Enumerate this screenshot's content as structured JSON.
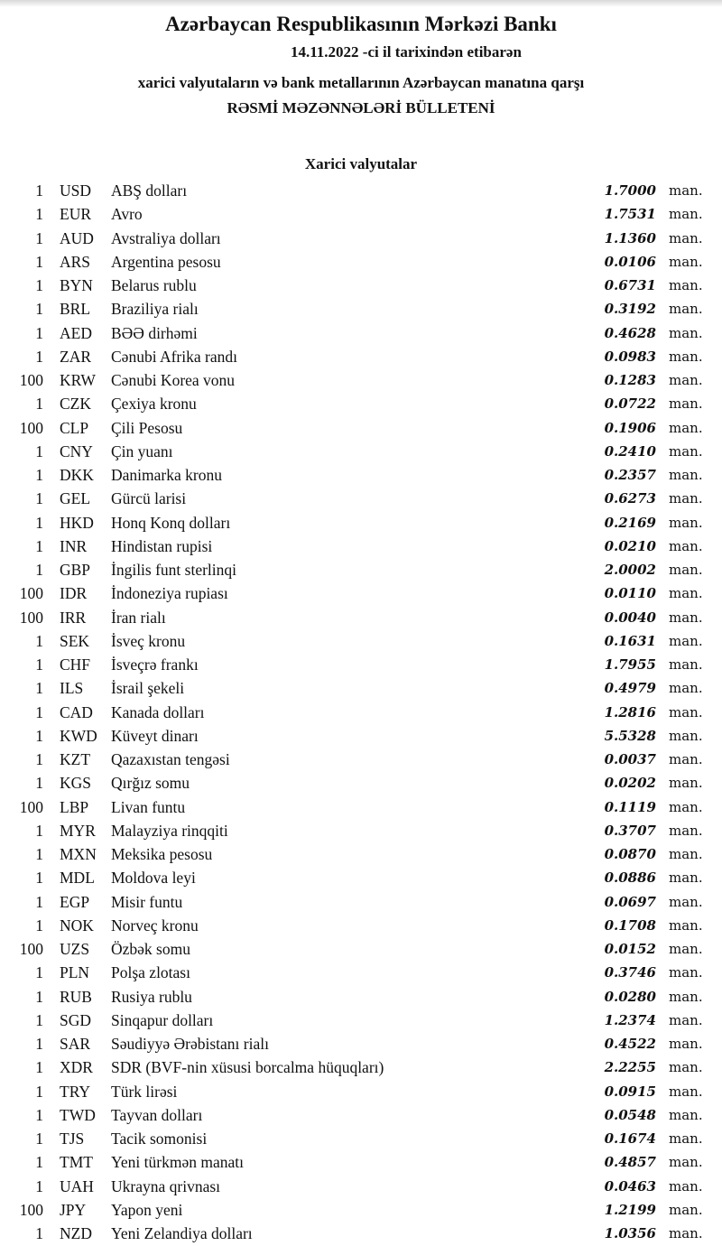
{
  "header": {
    "title": "Azərbaycan Respublikasının Mərkəzi Bankı",
    "date_line": "14.11.2022 -ci il tarixindən etibarən",
    "subtitle": "xarici valyutaların və bank metallarının Azərbaycan manatına qarşı",
    "bulletin": "RƏSMİ MƏZƏNNƏLƏRİ BÜLLETENİ",
    "section": "Xarici valyutalar"
  },
  "unit": "man.",
  "rates": [
    {
      "nominal": "1",
      "code": "USD",
      "name": "ABŞ dolları",
      "rate": "1.7000"
    },
    {
      "nominal": "1",
      "code": "EUR",
      "name": "Avro",
      "rate": "1.7531"
    },
    {
      "nominal": "1",
      "code": "AUD",
      "name": "Avstraliya dolları",
      "rate": "1.1360"
    },
    {
      "nominal": "1",
      "code": "ARS",
      "name": "Argentina pesosu",
      "rate": "0.0106"
    },
    {
      "nominal": "1",
      "code": "BYN",
      "name": "Belarus rublu",
      "rate": "0.6731"
    },
    {
      "nominal": "1",
      "code": "BRL",
      "name": "Braziliya rialı",
      "rate": "0.3192"
    },
    {
      "nominal": "1",
      "code": "AED",
      "name": "BƏƏ dirhəmi",
      "rate": "0.4628"
    },
    {
      "nominal": "1",
      "code": "ZAR",
      "name": "Cənubi Afrika randı",
      "rate": "0.0983"
    },
    {
      "nominal": "100",
      "code": "KRW",
      "name": "Cənubi Korea vonu",
      "rate": "0.1283"
    },
    {
      "nominal": "1",
      "code": "CZK",
      "name": "Çexiya kronu",
      "rate": "0.0722"
    },
    {
      "nominal": "100",
      "code": "CLP",
      "name": "Çili Pesosu",
      "rate": "0.1906"
    },
    {
      "nominal": "1",
      "code": "CNY",
      "name": "Çin yuanı",
      "rate": "0.2410"
    },
    {
      "nominal": "1",
      "code": "DKK",
      "name": "Danimarka kronu",
      "rate": "0.2357"
    },
    {
      "nominal": "1",
      "code": "GEL",
      "name": "Gürcü larisi",
      "rate": "0.6273"
    },
    {
      "nominal": "1",
      "code": "HKD",
      "name": "Honq Konq dolları",
      "rate": "0.2169"
    },
    {
      "nominal": "1",
      "code": "INR",
      "name": "Hindistan rupisi",
      "rate": "0.0210"
    },
    {
      "nominal": "1",
      "code": "GBP",
      "name": "İngilis funt sterlinqi",
      "rate": "2.0002"
    },
    {
      "nominal": "100",
      "code": "IDR",
      "name": "İndoneziya rupiası",
      "rate": "0.0110"
    },
    {
      "nominal": "100",
      "code": "IRR",
      "name": "İran rialı",
      "rate": "0.0040"
    },
    {
      "nominal": "1",
      "code": "SEK",
      "name": "İsveç kronu",
      "rate": "0.1631"
    },
    {
      "nominal": "1",
      "code": "CHF",
      "name": "İsveçrə frankı",
      "rate": "1.7955"
    },
    {
      "nominal": "1",
      "code": "ILS",
      "name": "İsrail şekeli",
      "rate": "0.4979"
    },
    {
      "nominal": "1",
      "code": "CAD",
      "name": "Kanada dolları",
      "rate": "1.2816"
    },
    {
      "nominal": "1",
      "code": "KWD",
      "name": "Küveyt dinarı",
      "rate": "5.5328"
    },
    {
      "nominal": "1",
      "code": "KZT",
      "name": "Qazaxıstan tengəsi",
      "rate": "0.0037"
    },
    {
      "nominal": "1",
      "code": "KGS",
      "name": "Qırğız somu",
      "rate": "0.0202"
    },
    {
      "nominal": "100",
      "code": "LBP",
      "name": "Livan funtu",
      "rate": "0.1119"
    },
    {
      "nominal": "1",
      "code": "MYR",
      "name": "Malayziya rinqqiti",
      "rate": "0.3707"
    },
    {
      "nominal": "1",
      "code": "MXN",
      "name": "Meksika pesosu",
      "rate": "0.0870"
    },
    {
      "nominal": "1",
      "code": "MDL",
      "name": "Moldova leyi",
      "rate": "0.0886"
    },
    {
      "nominal": "1",
      "code": "EGP",
      "name": "Misir funtu",
      "rate": "0.0697"
    },
    {
      "nominal": "1",
      "code": "NOK",
      "name": "Norveç kronu",
      "rate": "0.1708"
    },
    {
      "nominal": "100",
      "code": "UZS",
      "name": "Özbək somu",
      "rate": "0.0152"
    },
    {
      "nominal": "1",
      "code": "PLN",
      "name": "Polşa zlotası",
      "rate": "0.3746"
    },
    {
      "nominal": "1",
      "code": "RUB",
      "name": "Rusiya rublu",
      "rate": "0.0280"
    },
    {
      "nominal": "1",
      "code": "SGD",
      "name": "Sinqapur dolları",
      "rate": "1.2374"
    },
    {
      "nominal": "1",
      "code": "SAR",
      "name": "Səudiyyə Ərəbistanı rialı",
      "rate": "0.4522"
    },
    {
      "nominal": "1",
      "code": "XDR",
      "name": "SDR (BVF-nin xüsusi borcalma hüquqları)",
      "rate": "2.2255"
    },
    {
      "nominal": "1",
      "code": "TRY",
      "name": "Türk lirəsi",
      "rate": "0.0915"
    },
    {
      "nominal": "1",
      "code": "TWD",
      "name": "Tayvan dolları",
      "rate": "0.0548"
    },
    {
      "nominal": "1",
      "code": "TJS",
      "name": "Tacik somonisi",
      "rate": "0.1674"
    },
    {
      "nominal": "1",
      "code": "TMT",
      "name": "Yeni türkmən manatı",
      "rate": "0.4857"
    },
    {
      "nominal": "1",
      "code": "UAH",
      "name": "Ukrayna qrivnası",
      "rate": "0.0463"
    },
    {
      "nominal": "100",
      "code": "JPY",
      "name": "Yapon yeni",
      "rate": "1.2199"
    },
    {
      "nominal": "1",
      "code": "NZD",
      "name": "Yeni Zelandiya dolları",
      "rate": "1.0356"
    }
  ]
}
